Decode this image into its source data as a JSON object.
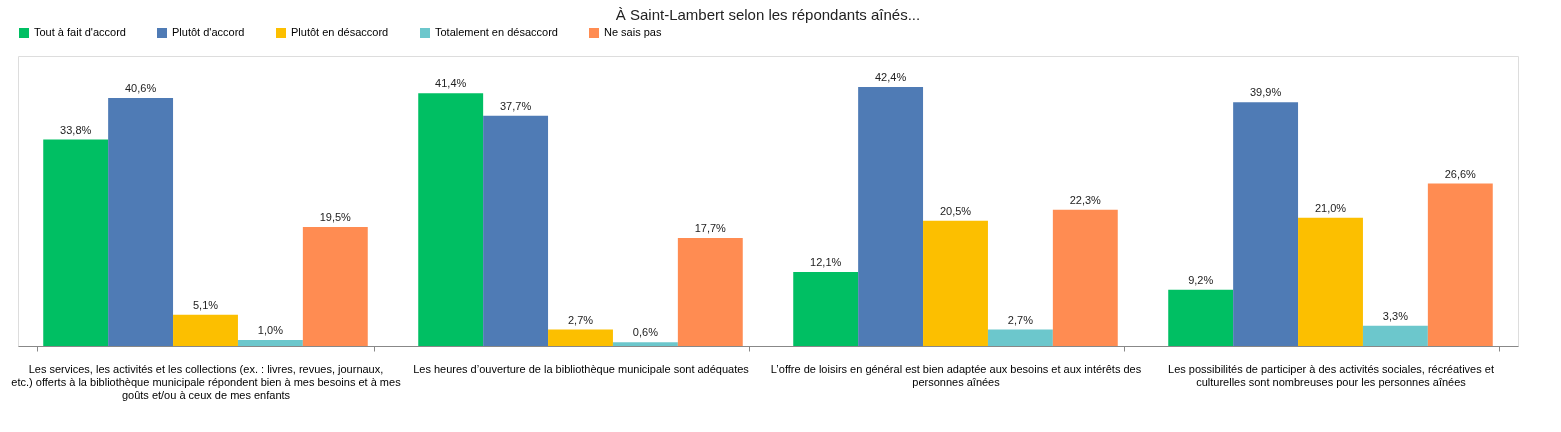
{
  "chart_data": {
    "type": "bar",
    "title": "À Saint-Lambert selon les répondants aînés...",
    "categories": [
      "Les services, les activités et les collections (ex. : livres, revues, journaux, etc.) offerts à la bibliothèque municipale répondent bien à mes besoins et à mes goûts et/ou à ceux de mes enfants",
      "Les heures d’ouverture de la bibliothèque municipale sont adéquates",
      "L’offre de loisirs en général est bien adaptée aux besoins et aux intérêts des personnes aînées",
      "Les possibilités de participer à des activités sociales, récréatives et culturelles sont nombreuses pour les personnes aînées"
    ],
    "series": [
      {
        "name": "Tout à fait d'accord",
        "color": "#00bf63",
        "values": [
          33.8,
          41.4,
          12.1,
          9.2
        ],
        "value_labels": [
          "33,8%",
          "41,4%",
          "12,1%",
          "9,2%"
        ]
      },
      {
        "name": "Plutôt d'accord",
        "color": "#4f7bb5",
        "values": [
          40.6,
          37.7,
          42.4,
          39.9
        ],
        "value_labels": [
          "40,6%",
          "37,7%",
          "42,4%",
          "39,9%"
        ]
      },
      {
        "name": "Plutôt en désaccord",
        "color": "#fcbf00",
        "values": [
          5.1,
          2.7,
          20.5,
          21.0
        ],
        "value_labels": [
          "5,1%",
          "2,7%",
          "20,5%",
          "21,0%"
        ]
      },
      {
        "name": "Totalement en désaccord",
        "color": "#6cc7cc",
        "values": [
          1.0,
          0.6,
          2.7,
          3.3
        ],
        "value_labels": [
          "1,0%",
          "0,6%",
          "2,7%",
          "3,3%"
        ]
      },
      {
        "name": "Ne sais pas",
        "color": "#ff8c52",
        "values": [
          19.5,
          17.7,
          22.3,
          26.6
        ],
        "value_labels": [
          "19,5%",
          "17,7%",
          "22,3%",
          "26,6%"
        ]
      }
    ],
    "legend": "top",
    "grid": false,
    "tick_labels": "x"
  }
}
